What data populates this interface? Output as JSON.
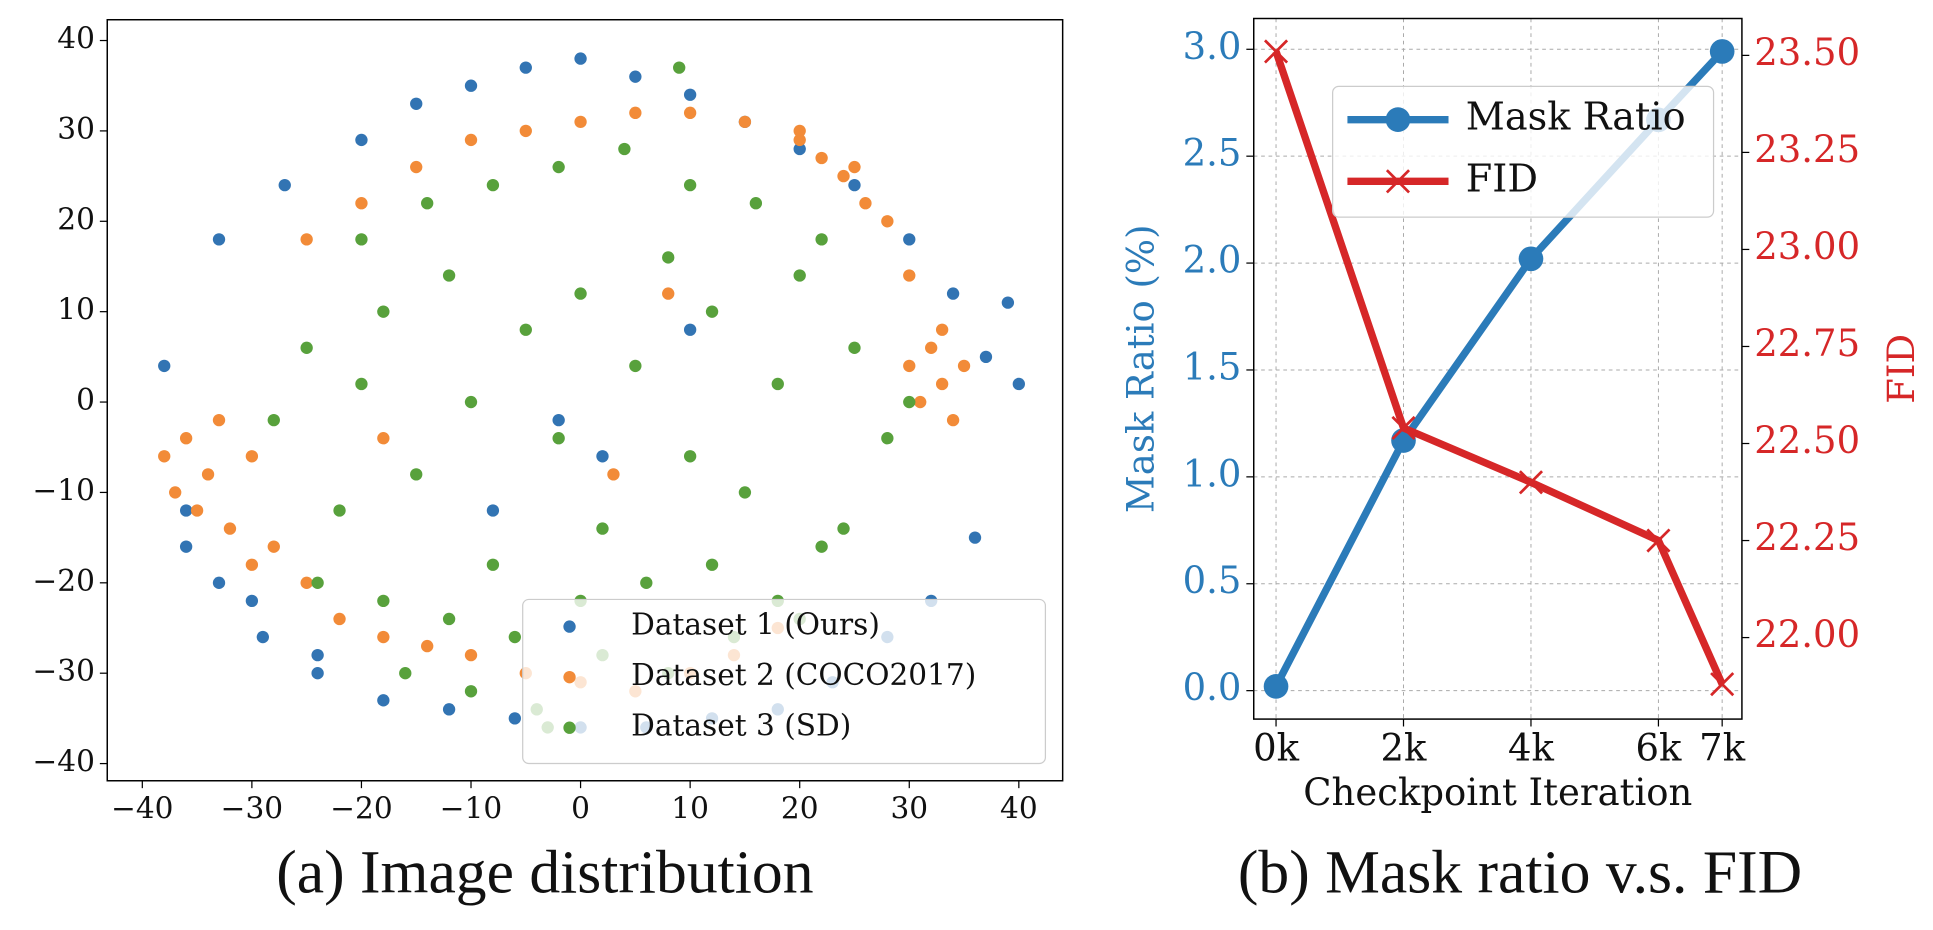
{
  "chart_data": [
    {
      "type": "scatter",
      "title": "(a) Image distribution",
      "xlim": [
        -43.2,
        44.0
      ],
      "ylim": [
        -41.9,
        42.3
      ],
      "xticks": [
        {
          "value": -40,
          "label": "−40"
        },
        {
          "value": -30,
          "label": "−30"
        },
        {
          "value": -20,
          "label": "−20"
        },
        {
          "value": -10,
          "label": "−10"
        },
        0,
        10,
        20,
        30,
        40
      ],
      "yticks": [
        {
          "value": -40,
          "label": "−40"
        },
        {
          "value": -30,
          "label": "−30"
        },
        {
          "value": -20,
          "label": "−20"
        },
        {
          "value": -10,
          "label": "−10"
        },
        0,
        10,
        20,
        30,
        40
      ],
      "legend": "lower right",
      "series": [
        {
          "name": "Dataset 1 (Ours)",
          "color": "#3274b3",
          "x": [
            -38,
            -36,
            -33,
            -30,
            -27,
            -24,
            -20,
            -15,
            -10,
            -5,
            0,
            5,
            10,
            15,
            20,
            25,
            30,
            34,
            37,
            39,
            40,
            36,
            32,
            28,
            23,
            18,
            12,
            6,
            0,
            -6,
            -12,
            -18,
            -24,
            -29,
            -33,
            -36,
            -2,
            2,
            -8,
            10
          ],
          "values": [
            4,
            -12,
            18,
            -22,
            24,
            -28,
            29,
            33,
            35,
            37,
            38,
            36,
            34,
            31,
            28,
            24,
            18,
            12,
            5,
            11,
            2,
            -15,
            -22,
            -26,
            -31,
            -34,
            -35,
            -36,
            -36,
            -35,
            -34,
            -33,
            -30,
            -26,
            -20,
            -16,
            -2,
            -6,
            -12,
            8
          ]
        },
        {
          "name": "Dataset 2 (COCO2017)",
          "color": "#f28b38",
          "x": [
            -38,
            -37,
            -36,
            -35,
            -34,
            -33,
            -32,
            -30,
            -28,
            -25,
            -22,
            -18,
            -14,
            -10,
            -5,
            0,
            5,
            10,
            14,
            18,
            20,
            22,
            24,
            26,
            30,
            31,
            32,
            33,
            34,
            35,
            33,
            30,
            28,
            25,
            20,
            15,
            10,
            5,
            0,
            -5,
            -10,
            -15,
            -20,
            -25,
            -30,
            -18,
            3,
            8
          ],
          "values": [
            -6,
            -10,
            -4,
            -12,
            -8,
            -2,
            -14,
            -6,
            -16,
            -20,
            -24,
            -26,
            -27,
            -28,
            -30,
            -31,
            -32,
            -30,
            -28,
            -25,
            29,
            27,
            25,
            22,
            4,
            0,
            6,
            2,
            -2,
            4,
            8,
            14,
            20,
            26,
            30,
            31,
            32,
            32,
            31,
            30,
            29,
            26,
            22,
            18,
            -18,
            -4,
            -8,
            12
          ]
        },
        {
          "name": "Dataset 3 (SD)",
          "color": "#58a13c",
          "x": [
            -28,
            -25,
            -22,
            -20,
            -18,
            -15,
            -12,
            -10,
            -8,
            -5,
            -2,
            0,
            2,
            5,
            8,
            10,
            12,
            15,
            18,
            20,
            22,
            25,
            28,
            30,
            -24,
            -18,
            -12,
            -6,
            0,
            6,
            12,
            18,
            24,
            -20,
            -14,
            -8,
            -2,
            4,
            10,
            16,
            22,
            -16,
            -10,
            -4,
            2,
            8,
            14,
            20,
            9,
            -3
          ],
          "values": [
            -2,
            6,
            -12,
            2,
            10,
            -8,
            14,
            0,
            -18,
            8,
            -4,
            12,
            -14,
            4,
            16,
            -6,
            10,
            -10,
            2,
            14,
            -16,
            6,
            -4,
            0,
            -20,
            -22,
            -24,
            -26,
            -22,
            -20,
            -18,
            -22,
            -14,
            18,
            22,
            24,
            26,
            28,
            24,
            22,
            18,
            -30,
            -32,
            -34,
            -28,
            -30,
            -26,
            -24,
            37,
            -36
          ]
        }
      ]
    },
    {
      "type": "line",
      "title": "(b) Mask ratio v.s. FID",
      "xlabel": "Checkpoint Iteration",
      "ylabel": "Mask Ratio (%)",
      "y2label": "FID",
      "x": [
        0,
        2,
        4,
        6,
        7
      ],
      "xlim": [
        -0.35,
        7.31
      ],
      "xticks": [
        {
          "value": 0,
          "label": "0k"
        },
        {
          "value": 2,
          "label": "2k"
        },
        {
          "value": 4,
          "label": "4k"
        },
        {
          "value": 6,
          "label": "6k"
        },
        {
          "value": 7,
          "label": "7k"
        }
      ],
      "ylim": [
        -0.133,
        3.144
      ],
      "yticks": [
        {
          "value": 0,
          "label": "0.0"
        },
        0.5,
        {
          "value": 1,
          "label": "1.0"
        },
        1.5,
        {
          "value": 2,
          "label": "2.0"
        },
        2.5,
        {
          "value": 3,
          "label": "3.0"
        }
      ],
      "y2lim": [
        21.79,
        23.595
      ],
      "y2ticks": [
        {
          "value": 22,
          "label": "22.00"
        },
        22.25,
        {
          "value": 22.5,
          "label": "22.50"
        },
        22.75,
        {
          "value": 23,
          "label": "23.00"
        },
        23.25,
        {
          "value": 23.5,
          "label": "23.50"
        }
      ],
      "grid": true,
      "legend": "upper left",
      "ycolor": "#2b7bb9",
      "y2color": "#d62728",
      "series": [
        {
          "name": "Mask Ratio",
          "color": "#2b7bb9",
          "marker": "o",
          "axis": "y",
          "values": [
            0.02,
            1.17,
            2.02,
            2.67,
            2.99
          ]
        },
        {
          "name": "FID",
          "color": "#d62728",
          "marker": "x",
          "axis": "y2",
          "values": [
            23.51,
            22.54,
            22.4,
            22.25,
            21.88
          ]
        }
      ]
    }
  ]
}
